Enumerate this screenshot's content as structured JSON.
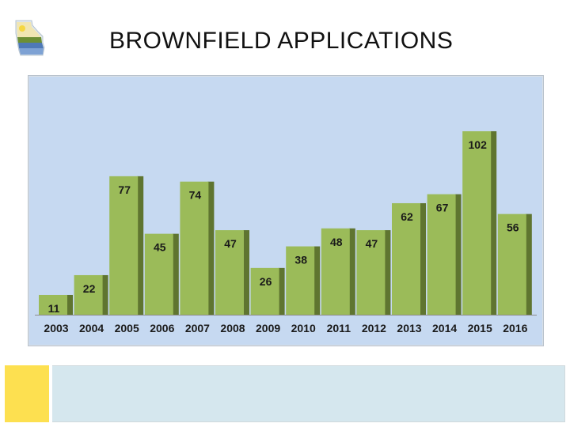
{
  "slide": {
    "title": "BROWNFIELD APPLICATIONS"
  },
  "colors": {
    "bar_fill": "#9bbb59",
    "bar_shadow": "#5f7530",
    "plot_background": "#c6d9f1",
    "bottom_panel": "#d5e7ee",
    "bottom_accent": "#fde050"
  },
  "chart_data": {
    "type": "bar",
    "title": "",
    "xlabel": "",
    "ylabel": "",
    "categories": [
      "2003",
      "2004",
      "2005",
      "2006",
      "2007",
      "2008",
      "2009",
      "2010",
      "2011",
      "2012",
      "2013",
      "2014",
      "2015",
      "2016"
    ],
    "values": [
      11,
      22,
      77,
      45,
      74,
      47,
      26,
      38,
      48,
      47,
      62,
      67,
      102,
      56
    ],
    "ylim": [
      0,
      110
    ],
    "data_labels": true,
    "grid": false,
    "legend": "none"
  }
}
